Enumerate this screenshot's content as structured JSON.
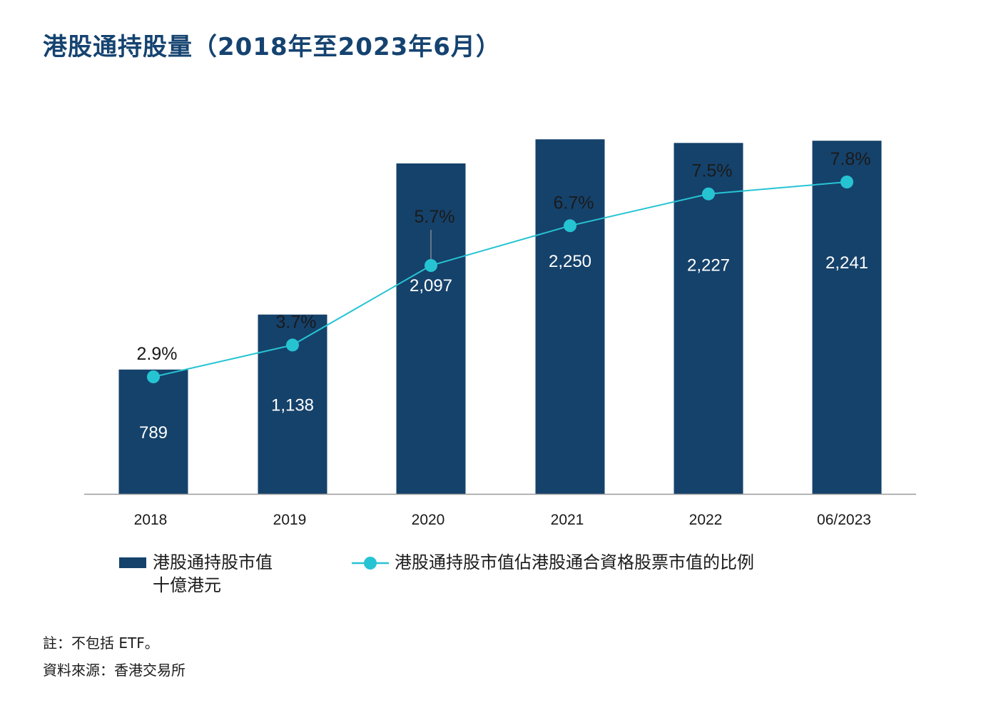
{
  "title": "港股通持股量（2018年至2023年6月）",
  "colors": {
    "bar": "#15426B",
    "line": "#26C4D3",
    "axis": "#9a9a9a",
    "title": "#154370"
  },
  "legend": {
    "bar_label_line1": "港股通持股市值",
    "bar_label_line2": "十億港元",
    "line_label": "港股通持股市值佔港股通合資格股票市值的比例"
  },
  "notes": {
    "note": "註：不包括 ETF。",
    "source": "資料來源：香港交易所"
  },
  "chart_data": {
    "type": "bar",
    "categories": [
      "2018",
      "2019",
      "2020",
      "2021",
      "2022",
      "06/2023"
    ],
    "series": [
      {
        "type": "bar",
        "values": [
          789,
          1138,
          2097,
          2250,
          2227,
          2241
        ],
        "labels": [
          "789",
          "1,138",
          "2,097",
          "2,250",
          "2,227",
          "2,241"
        ]
      },
      {
        "type": "line",
        "values": [
          2.9,
          3.7,
          5.7,
          6.7,
          7.5,
          7.8
        ],
        "labels": [
          "2.9%",
          "3.7%",
          "5.7%",
          "6.7%",
          "7.5%",
          "7.8%"
        ]
      }
    ],
    "ylim": [
      0,
      2500
    ],
    "y2lim": [
      0,
      9
    ],
    "grid": false
  }
}
